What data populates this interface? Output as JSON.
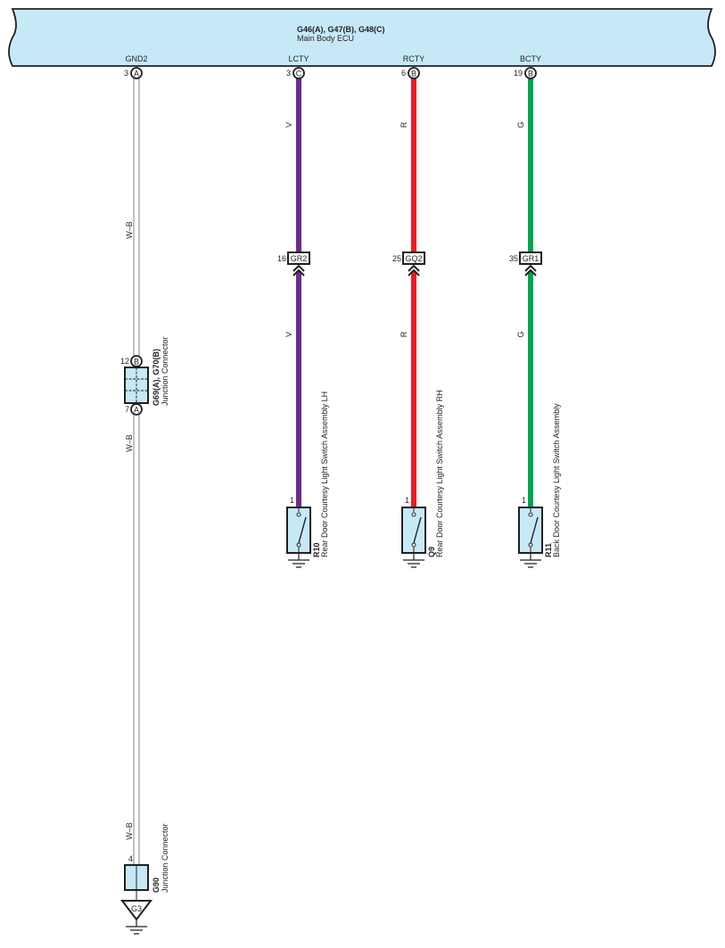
{
  "ecu": {
    "code": "G46(A), G47(B), G48(C)",
    "name": "Main Body ECU",
    "fill": "#c6e9f8"
  },
  "colors": {
    "purple": "#6a2c91",
    "red": "#ed1c24",
    "green": "#00a651",
    "wb_border": "#808080",
    "component_fill": "#c6e9f8"
  },
  "circuits": [
    {
      "terminal": "GND2",
      "pin": "3",
      "connector": "A",
      "wire_label": "W–B",
      "color": "wb"
    },
    {
      "terminal": "LCTY",
      "pin": "3",
      "connector": "C",
      "wire_label": "V",
      "color": "purple",
      "junction": {
        "pin": "16",
        "code": "GR2"
      },
      "switch": {
        "pin": "1",
        "code": "R10",
        "name": "Rear Door Courtesy Light Switch Assembly LH"
      }
    },
    {
      "terminal": "RCTY",
      "pin": "6",
      "connector": "B",
      "wire_label": "R",
      "color": "red",
      "junction": {
        "pin": "25",
        "code": "GQ2"
      },
      "switch": {
        "pin": "1",
        "code": "Q9",
        "name": "Rear Door Courtesy Light Switch Assembly RH"
      }
    },
    {
      "terminal": "BCTY",
      "pin": "19",
      "connector": "B",
      "wire_label": "G",
      "color": "green",
      "junction": {
        "pin": "35",
        "code": "GR1"
      },
      "switch": {
        "pin": "1",
        "code": "R11",
        "name": "Back Door Courtesy Light Switch Assembly"
      }
    }
  ],
  "junction_connector": {
    "code": "G69(A), G70(B)",
    "name": "Junction Connector",
    "top_pin": "12",
    "top_connector": "B",
    "bottom_pin": "7",
    "bottom_connector": "A",
    "wire_label": "W–B"
  },
  "ground_connector": {
    "code": "G90",
    "name": "Junction Connector",
    "pin": "4",
    "wire_label": "W–B",
    "ground_point": "G3"
  }
}
